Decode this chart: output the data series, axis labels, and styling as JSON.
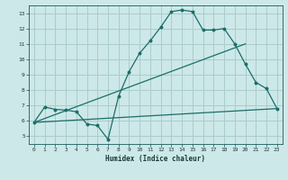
{
  "bg_color": "#cde8e8",
  "grid_color": "#aacccc",
  "line_color": "#1a6e6a",
  "xlabel": "Humidex (Indice chaleur)",
  "xlim": [
    -0.5,
    23.5
  ],
  "ylim": [
    4.5,
    13.5
  ],
  "xticks": [
    0,
    1,
    2,
    3,
    4,
    5,
    6,
    7,
    8,
    9,
    10,
    11,
    12,
    13,
    14,
    15,
    16,
    17,
    18,
    19,
    20,
    21,
    22,
    23
  ],
  "yticks": [
    5,
    6,
    7,
    8,
    9,
    10,
    11,
    12,
    13
  ],
  "line1_x": [
    0,
    1,
    2,
    3,
    4,
    5,
    6,
    7,
    8,
    9,
    10,
    11,
    12,
    13,
    14,
    15,
    16,
    17,
    18,
    19,
    20,
    21,
    22,
    23
  ],
  "line1_y": [
    5.9,
    6.9,
    6.75,
    6.7,
    6.6,
    5.8,
    5.7,
    4.8,
    7.6,
    9.2,
    10.4,
    11.2,
    12.1,
    13.1,
    13.2,
    13.1,
    11.9,
    11.9,
    12.0,
    11.0,
    9.7,
    8.5,
    8.1,
    6.8
  ],
  "line2_x": [
    0,
    23
  ],
  "line2_y": [
    5.9,
    6.8
  ],
  "line3_x": [
    0,
    20
  ],
  "line3_y": [
    5.9,
    11.0
  ]
}
